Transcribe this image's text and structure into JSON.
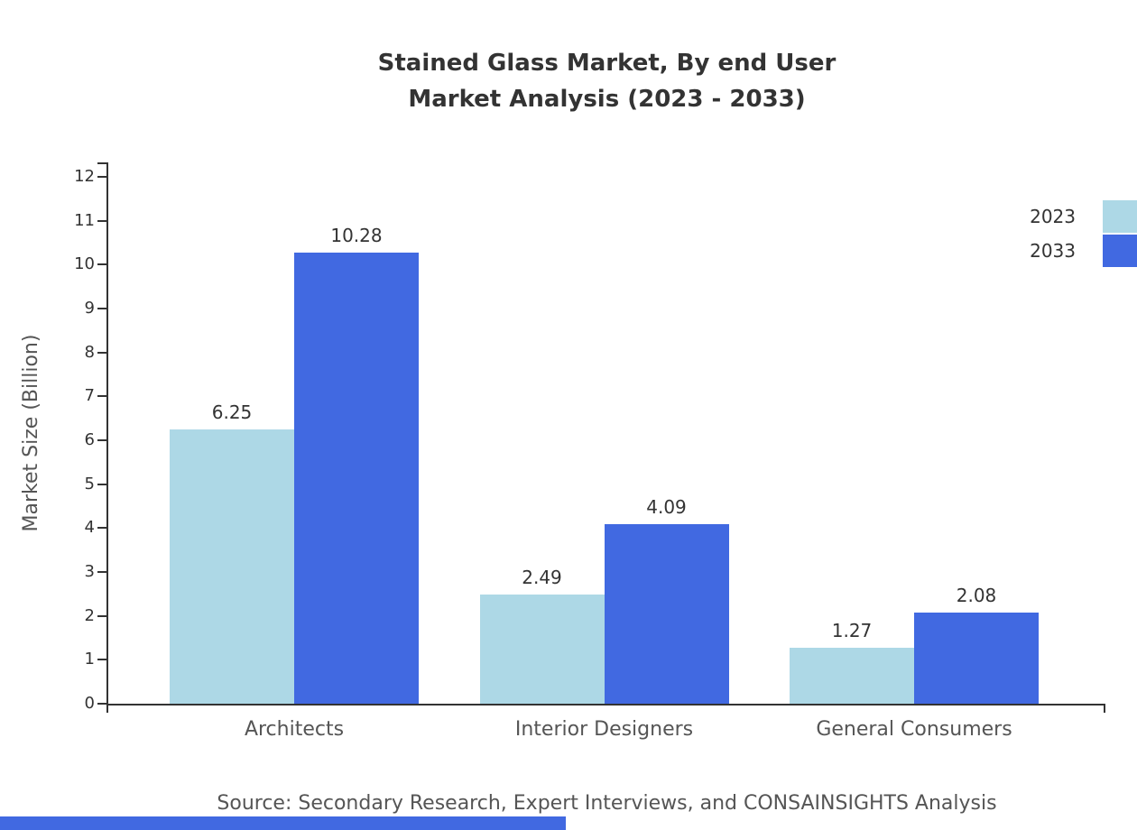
{
  "title": {
    "line1": "Stained Glass Market, By end User",
    "line2": "Market Analysis (2023 - 2033)"
  },
  "source": "Source: Secondary Research, Expert Interviews, and CONSAINSIGHTS Analysis",
  "colors": {
    "series_2023": "#ADD8E6",
    "series_2033": "#4169E1",
    "footer_bar": "#4169E1",
    "axis": "#333333"
  },
  "chart_data": {
    "type": "bar",
    "title": "Stained Glass Market, By end User Market Analysis (2023 - 2033)",
    "categories": [
      "Architects",
      "Interior Designers",
      "General Consumers"
    ],
    "series": [
      {
        "name": "2023",
        "color": "#ADD8E6",
        "values": [
          6.25,
          2.49,
          1.27
        ]
      },
      {
        "name": "2033",
        "color": "#4169E1",
        "values": [
          10.28,
          4.09,
          2.08
        ]
      }
    ],
    "xlabel": "",
    "ylabel": "Market Size (Billion)",
    "ylim": [
      0,
      12
    ],
    "ytick_step": 1,
    "grid": false,
    "legend_position": "top-right",
    "value_labels": true
  }
}
